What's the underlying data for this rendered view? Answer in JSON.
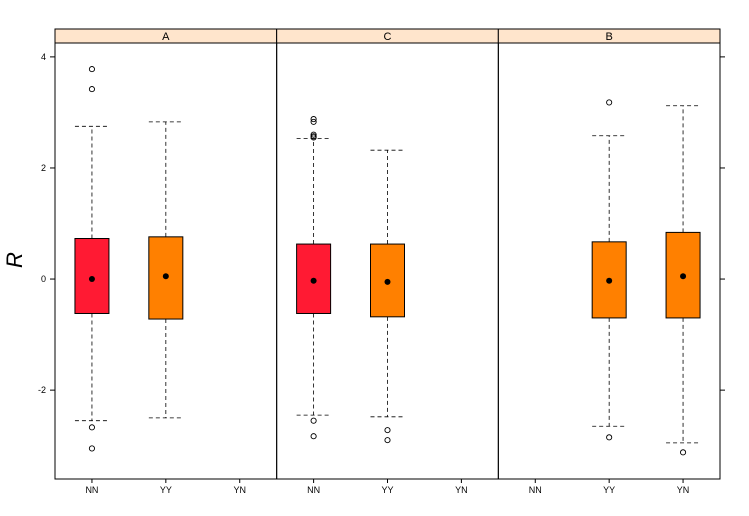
{
  "chart_data": {
    "type": "boxplot",
    "ylabel": "R",
    "ylim": [
      -3.6,
      4.25
    ],
    "yticks": [
      -2,
      0,
      2,
      4
    ],
    "yticklabels": [
      "-2",
      "0",
      "2",
      "4"
    ],
    "categories": [
      "NN",
      "YY",
      "YN"
    ],
    "colors": {
      "NN": "#ff1a33",
      "YY": "#ff8000",
      "YN": "#ff8000"
    },
    "strip_color": "#ffe5cc",
    "panels": [
      {
        "label": "A",
        "boxes": [
          {
            "category": "NN",
            "whisker_low": -2.55,
            "q1": -0.62,
            "median": 0.0,
            "q3": 0.73,
            "whisker_high": 2.75,
            "outliers": [
              3.78,
              3.42,
              -2.67,
              -3.05
            ]
          },
          {
            "category": "YY",
            "whisker_low": -2.5,
            "q1": -0.72,
            "median": 0.05,
            "q3": 0.76,
            "whisker_high": 2.83,
            "outliers": []
          }
        ]
      },
      {
        "label": "C",
        "boxes": [
          {
            "category": "NN",
            "whisker_low": -2.45,
            "q1": -0.62,
            "median": -0.03,
            "q3": 0.63,
            "whisker_high": 2.53,
            "outliers": [
              2.88,
              2.83,
              2.6,
              2.57,
              2.55,
              -2.55,
              -2.83
            ]
          },
          {
            "category": "YY",
            "whisker_low": -2.48,
            "q1": -0.68,
            "median": -0.05,
            "q3": 0.63,
            "whisker_high": 2.32,
            "outliers": [
              -2.72,
              -2.9
            ]
          }
        ]
      },
      {
        "label": "B",
        "boxes": [
          {
            "category": "YY",
            "whisker_low": -2.65,
            "q1": -0.7,
            "median": -0.03,
            "q3": 0.67,
            "whisker_high": 2.58,
            "outliers": [
              3.18,
              -2.85
            ]
          },
          {
            "category": "YN",
            "whisker_low": -2.95,
            "q1": -0.7,
            "median": 0.05,
            "q3": 0.84,
            "whisker_high": 3.12,
            "outliers": [
              -3.12
            ]
          }
        ]
      }
    ]
  }
}
